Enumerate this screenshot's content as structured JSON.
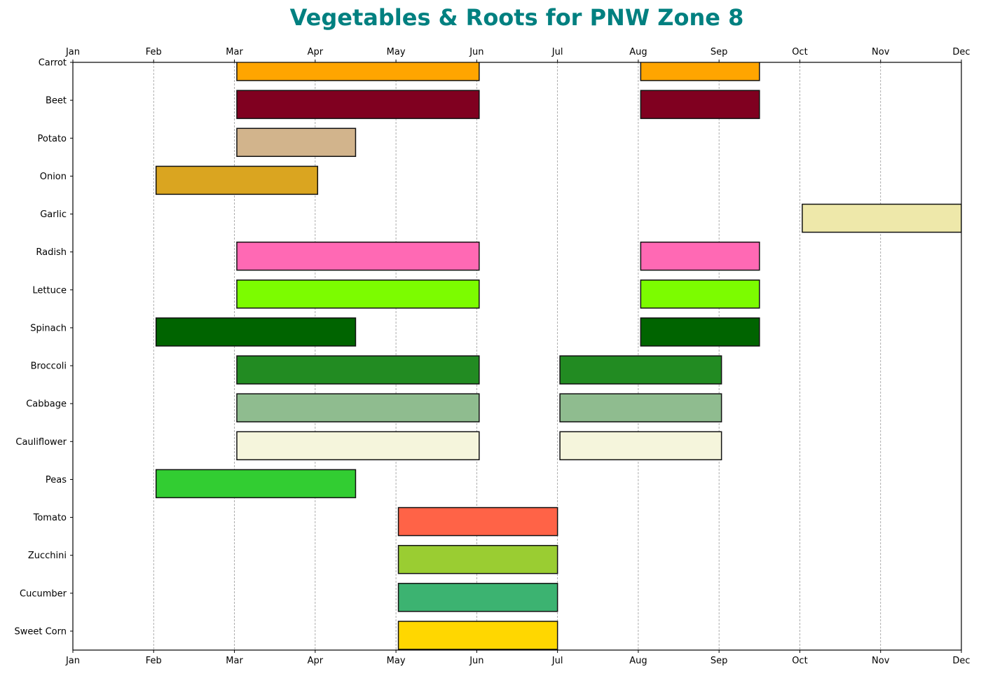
{
  "chart_data": {
    "type": "gantt",
    "title": "Vegetables & Roots for PNW Zone 8",
    "title_color": "#008080",
    "x_axis": {
      "tick_labels": [
        "Jan",
        "Feb",
        "Mar",
        "Apr",
        "May",
        "Jun",
        "Jul",
        "Aug",
        "Sep",
        "Oct",
        "Nov",
        "Dec"
      ],
      "range_months": [
        1,
        12
      ],
      "positions": [
        "top",
        "bottom"
      ],
      "grid": "vertical dashed"
    },
    "categories": [
      "Carrot",
      "Beet",
      "Potato",
      "Onion",
      "Garlic",
      "Radish",
      "Lettuce",
      "Spinach",
      "Broccoli",
      "Cabbage",
      "Cauliflower",
      "Peas",
      "Tomato",
      "Zucchini",
      "Cucumber",
      "Sweet Corn"
    ],
    "series": [
      {
        "crop": "Carrot",
        "color": "#FFA500",
        "periods": [
          [
            3.03,
            6.03
          ],
          [
            8.03,
            9.5
          ]
        ]
      },
      {
        "crop": "Beet",
        "color": "#800020",
        "periods": [
          [
            3.03,
            6.03
          ],
          [
            8.03,
            9.5
          ]
        ]
      },
      {
        "crop": "Potato",
        "color": "#D2B48C",
        "periods": [
          [
            3.03,
            4.5
          ]
        ]
      },
      {
        "crop": "Onion",
        "color": "#DAA520",
        "periods": [
          [
            2.03,
            4.03
          ]
        ]
      },
      {
        "crop": "Garlic",
        "color": "#EEE8AA",
        "periods": [
          [
            10.03,
            12.0
          ]
        ]
      },
      {
        "crop": "Radish",
        "color": "#FF69B4",
        "periods": [
          [
            3.03,
            6.03
          ],
          [
            8.03,
            9.5
          ]
        ]
      },
      {
        "crop": "Lettuce",
        "color": "#7CFC00",
        "periods": [
          [
            3.03,
            6.03
          ],
          [
            8.03,
            9.5
          ]
        ]
      },
      {
        "crop": "Spinach",
        "color": "#006400",
        "periods": [
          [
            2.03,
            4.5
          ],
          [
            8.03,
            9.5
          ]
        ]
      },
      {
        "crop": "Broccoli",
        "color": "#228B22",
        "periods": [
          [
            3.03,
            6.03
          ],
          [
            7.03,
            9.03
          ]
        ]
      },
      {
        "crop": "Cabbage",
        "color": "#8FBC8F",
        "periods": [
          [
            3.03,
            6.03
          ],
          [
            7.03,
            9.03
          ]
        ]
      },
      {
        "crop": "Cauliflower",
        "color": "#F5F5DC",
        "periods": [
          [
            3.03,
            6.03
          ],
          [
            7.03,
            9.03
          ]
        ]
      },
      {
        "crop": "Peas",
        "color": "#32CD32",
        "periods": [
          [
            2.03,
            4.5
          ]
        ]
      },
      {
        "crop": "Tomato",
        "color": "#FF6347",
        "periods": [
          [
            5.03,
            7.0
          ]
        ]
      },
      {
        "crop": "Zucchini",
        "color": "#9ACD32",
        "periods": [
          [
            5.03,
            7.0
          ]
        ]
      },
      {
        "crop": "Cucumber",
        "color": "#3CB371",
        "periods": [
          [
            5.03,
            7.0
          ]
        ]
      },
      {
        "crop": "Sweet Corn",
        "color": "#FFD700",
        "periods": [
          [
            5.03,
            7.0
          ]
        ]
      }
    ]
  }
}
